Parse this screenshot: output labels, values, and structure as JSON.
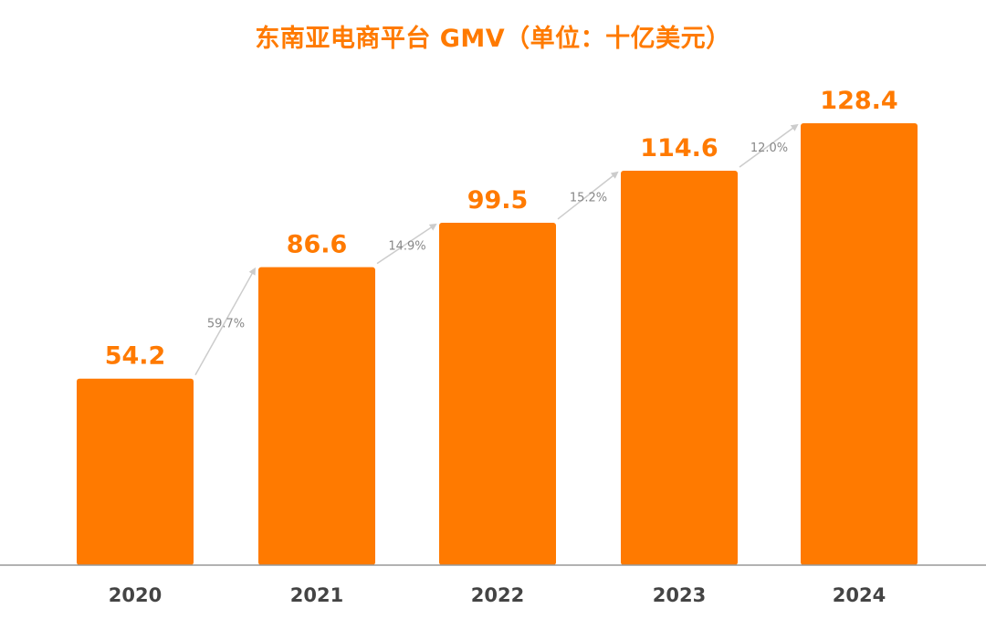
{
  "chart_data": {
    "type": "bar",
    "title": "东南亚电商平台 GMV（单位：十亿美元）",
    "categories": [
      "2020",
      "2021",
      "2022",
      "2023",
      "2024"
    ],
    "values": [
      54.2,
      86.6,
      99.5,
      114.6,
      128.4
    ],
    "value_labels": [
      "54.2",
      "86.6",
      "99.5",
      "114.6",
      "128.4"
    ],
    "growth_labels": [
      "59.7%",
      "14.9%",
      "15.2%",
      "12.0%"
    ],
    "xlabel": "",
    "ylabel": "",
    "ylim": [
      0,
      128.4
    ],
    "grid": false,
    "legend": "none",
    "colors": {
      "bar": "#ff7a00",
      "value_label": "#ff7a00",
      "growth_label": "#888888",
      "arrow": "#cccccc",
      "axis": "#999999",
      "x_label": "#444444",
      "title": "#ff7a00"
    }
  }
}
